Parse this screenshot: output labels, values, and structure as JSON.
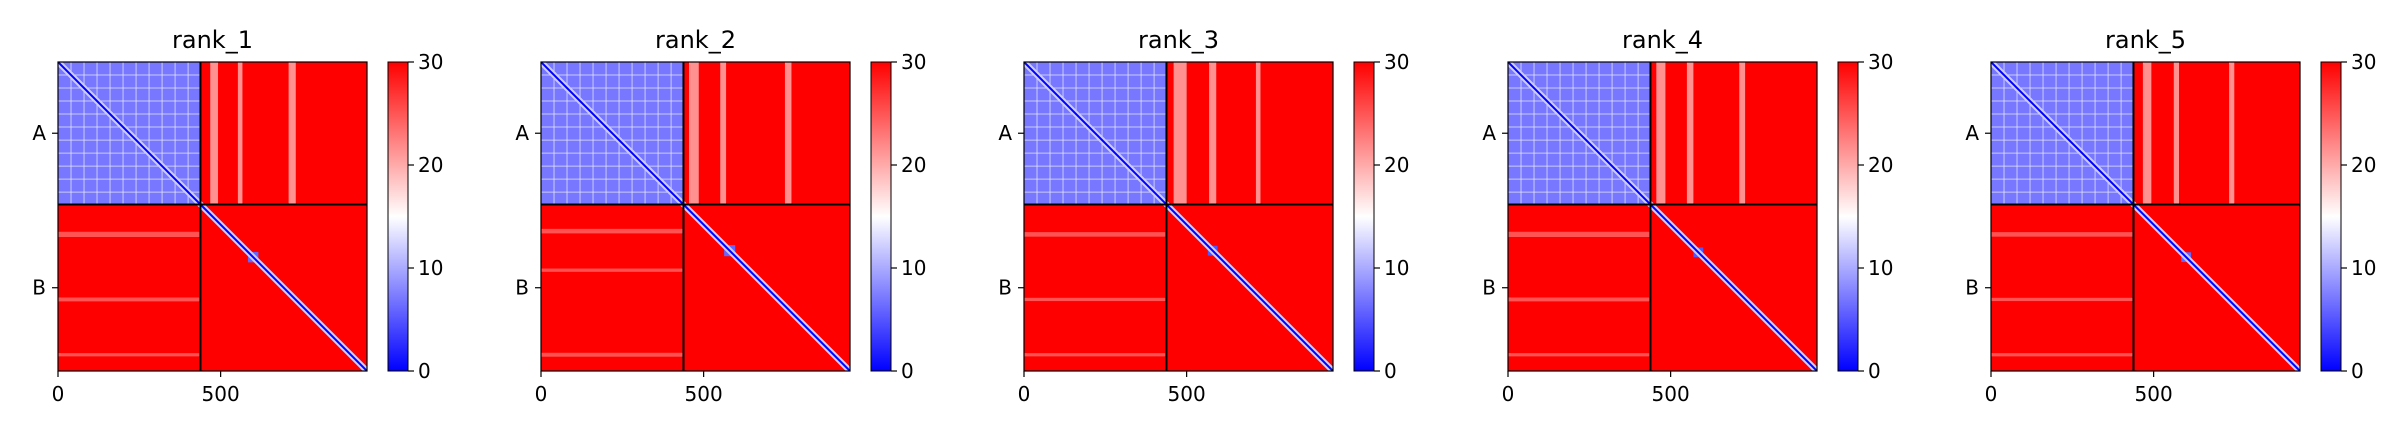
{
  "chart_data": [
    {
      "type": "heatmap",
      "title": "rank_1",
      "x_ticks": [
        0,
        500
      ],
      "xlim": [
        0,
        950
      ],
      "chain_split": 438,
      "y_tick_labels": [
        "A",
        "B"
      ],
      "colorbar": {
        "min": 0,
        "max": 30,
        "ticks": [
          0,
          10,
          20,
          30
        ],
        "colormap": "bwr"
      },
      "features": {
        "ab_stripes": [
          [
            480,
            24
          ],
          [
            560,
            14
          ],
          [
            720,
            22
          ]
        ],
        "b_blob": [
          600,
          32,
          6
        ],
        "ba_rows": [
          [
            530,
            16
          ],
          [
            730,
            12
          ],
          [
            900,
            10
          ]
        ]
      }
    },
    {
      "type": "heatmap",
      "title": "rank_2",
      "x_ticks": [
        0,
        500
      ],
      "xlim": [
        0,
        950
      ],
      "chain_split": 438,
      "y_tick_labels": [
        "A",
        "B"
      ],
      "colorbar": {
        "min": 0,
        "max": 30,
        "ticks": [
          0,
          10,
          20,
          30
        ],
        "colormap": "bwr"
      },
      "features": {
        "ab_stripes": [
          [
            470,
            30
          ],
          [
            560,
            18
          ],
          [
            760,
            20
          ]
        ],
        "b_blob": [
          580,
          34,
          6
        ],
        "ba_rows": [
          [
            520,
            14
          ],
          [
            640,
            10
          ],
          [
            900,
            12
          ]
        ]
      }
    },
    {
      "type": "heatmap",
      "title": "rank_3",
      "x_ticks": [
        0,
        500
      ],
      "xlim": [
        0,
        950
      ],
      "chain_split": 438,
      "y_tick_labels": [
        "A",
        "B"
      ],
      "colorbar": {
        "min": 0,
        "max": 30,
        "ticks": [
          0,
          10,
          20,
          30
        ],
        "colormap": "bwr"
      },
      "features": {
        "ab_stripes": [
          [
            480,
            40
          ],
          [
            580,
            22
          ],
          [
            720,
            14
          ]
        ],
        "b_blob": [
          580,
          30,
          5
        ],
        "ba_rows": [
          [
            530,
            14
          ],
          [
            730,
            10
          ],
          [
            900,
            10
          ]
        ]
      }
    },
    {
      "type": "heatmap",
      "title": "rank_4",
      "x_ticks": [
        0,
        500
      ],
      "xlim": [
        0,
        950
      ],
      "chain_split": 438,
      "y_tick_labels": [
        "A",
        "B"
      ],
      "colorbar": {
        "min": 0,
        "max": 30,
        "ticks": [
          0,
          10,
          20,
          30
        ],
        "colormap": "bwr"
      },
      "features": {
        "ab_stripes": [
          [
            470,
            28
          ],
          [
            560,
            20
          ],
          [
            720,
            18
          ]
        ],
        "b_blob": [
          585,
          30,
          5
        ],
        "ba_rows": [
          [
            530,
            16
          ],
          [
            730,
            12
          ],
          [
            900,
            10
          ]
        ]
      }
    },
    {
      "type": "heatmap",
      "title": "rank_5",
      "x_ticks": [
        0,
        500
      ],
      "xlim": [
        0,
        950
      ],
      "chain_split": 438,
      "y_tick_labels": [
        "A",
        "B"
      ],
      "colorbar": {
        "min": 0,
        "max": 30,
        "ticks": [
          0,
          10,
          20,
          30
        ],
        "colormap": "bwr"
      },
      "features": {
        "ab_stripes": [
          [
            480,
            26
          ],
          [
            570,
            16
          ],
          [
            740,
            16
          ]
        ],
        "b_blob": [
          600,
          30,
          6
        ],
        "ba_rows": [
          [
            530,
            14
          ],
          [
            730,
            10
          ],
          [
            900,
            10
          ]
        ]
      }
    }
  ]
}
